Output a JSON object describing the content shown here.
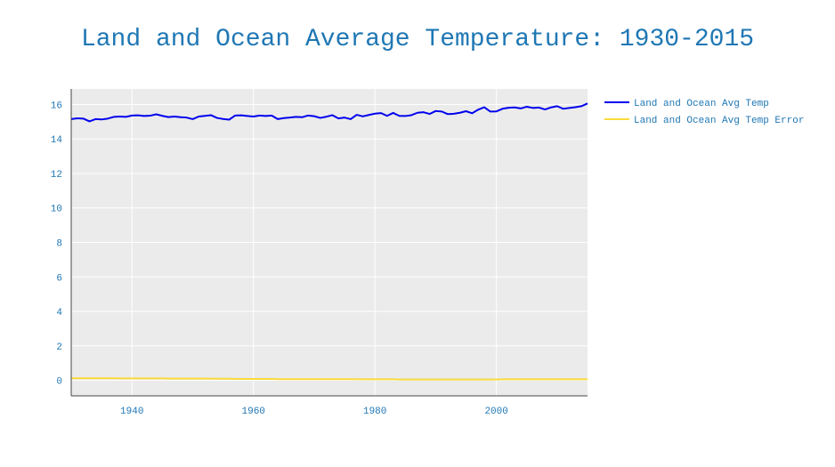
{
  "chart_data": {
    "type": "line",
    "title": "Land and Ocean Average Temperature: 1930-2015",
    "xlabel": "",
    "ylabel": "",
    "xlim": [
      1930,
      2015
    ],
    "ylim": [
      -0.9,
      16.9
    ],
    "x_ticks": [
      1940,
      1960,
      1980,
      2000
    ],
    "y_ticks": [
      0,
      2,
      4,
      6,
      8,
      10,
      12,
      14,
      16
    ],
    "grid": true,
    "legend_position": "top-right outside",
    "x": [
      1930,
      1931,
      1932,
      1933,
      1934,
      1935,
      1936,
      1937,
      1938,
      1939,
      1940,
      1941,
      1942,
      1943,
      1944,
      1945,
      1946,
      1947,
      1948,
      1949,
      1950,
      1951,
      1952,
      1953,
      1954,
      1955,
      1956,
      1957,
      1958,
      1959,
      1960,
      1961,
      1962,
      1963,
      1964,
      1965,
      1966,
      1967,
      1968,
      1969,
      1970,
      1971,
      1972,
      1973,
      1974,
      1975,
      1976,
      1977,
      1978,
      1979,
      1980,
      1981,
      1982,
      1983,
      1984,
      1985,
      1986,
      1987,
      1988,
      1989,
      1990,
      1991,
      1992,
      1993,
      1994,
      1995,
      1996,
      1997,
      1998,
      1999,
      2000,
      2001,
      2002,
      2003,
      2004,
      2005,
      2006,
      2007,
      2008,
      2009,
      2010,
      2011,
      2012,
      2013,
      2014,
      2015
    ],
    "series": [
      {
        "name": "Land and Ocean Avg Temp",
        "color": "#0000ee",
        "values": [
          15.15,
          15.2,
          15.18,
          15.02,
          15.15,
          15.13,
          15.18,
          15.28,
          15.3,
          15.28,
          15.36,
          15.37,
          15.33,
          15.35,
          15.43,
          15.34,
          15.27,
          15.3,
          15.26,
          15.24,
          15.15,
          15.3,
          15.34,
          15.38,
          15.22,
          15.16,
          15.12,
          15.36,
          15.37,
          15.33,
          15.3,
          15.36,
          15.33,
          15.36,
          15.15,
          15.21,
          15.24,
          15.28,
          15.26,
          15.36,
          15.32,
          15.22,
          15.29,
          15.38,
          15.19,
          15.24,
          15.15,
          15.4,
          15.31,
          15.39,
          15.47,
          15.5,
          15.34,
          15.51,
          15.34,
          15.33,
          15.38,
          15.52,
          15.55,
          15.45,
          15.62,
          15.59,
          15.44,
          15.46,
          15.52,
          15.61,
          15.49,
          15.7,
          15.84,
          15.59,
          15.6,
          15.75,
          15.81,
          15.83,
          15.77,
          15.87,
          15.8,
          15.82,
          15.71,
          15.83,
          15.9,
          15.75,
          15.8,
          15.84,
          15.9,
          16.06
        ]
      },
      {
        "name": "Land and Ocean Avg Temp Error",
        "color": "#fada3a",
        "values": [
          0.12,
          0.12,
          0.12,
          0.12,
          0.12,
          0.12,
          0.12,
          0.12,
          0.11,
          0.11,
          0.11,
          0.11,
          0.11,
          0.11,
          0.11,
          0.11,
          0.1,
          0.1,
          0.1,
          0.1,
          0.1,
          0.1,
          0.1,
          0.1,
          0.09,
          0.09,
          0.09,
          0.08,
          0.08,
          0.08,
          0.08,
          0.08,
          0.08,
          0.08,
          0.07,
          0.07,
          0.07,
          0.07,
          0.07,
          0.07,
          0.07,
          0.07,
          0.07,
          0.07,
          0.07,
          0.07,
          0.07,
          0.06,
          0.06,
          0.06,
          0.06,
          0.06,
          0.06,
          0.06,
          0.05,
          0.05,
          0.05,
          0.05,
          0.05,
          0.05,
          0.05,
          0.05,
          0.05,
          0.05,
          0.05,
          0.05,
          0.05,
          0.05,
          0.05,
          0.05,
          0.05,
          0.06,
          0.06,
          0.06,
          0.06,
          0.06,
          0.06,
          0.06,
          0.06,
          0.06,
          0.06,
          0.06,
          0.06,
          0.06,
          0.06,
          0.06
        ]
      }
    ]
  }
}
